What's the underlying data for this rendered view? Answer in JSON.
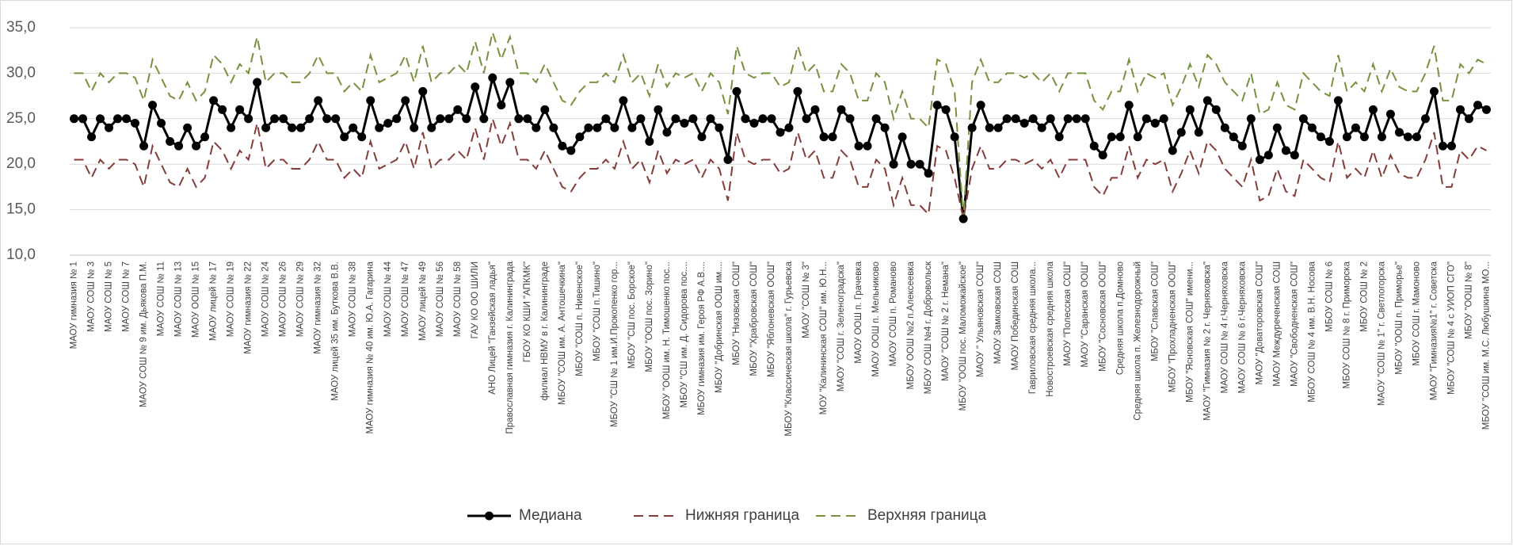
{
  "chart_data": {
    "type": "line",
    "categories": [
      "МАОУ гимназия № 1",
      null,
      "МАОУ СОШ № 3",
      null,
      "МАОУ СОШ № 5",
      null,
      "МАОУ СОШ № 7",
      null,
      "МАОУ СОШ № 9 им. Дьякова П.М.",
      null,
      "МАОУ СОШ № 11",
      null,
      "МАОУ СОШ № 13",
      null,
      "МАОУ ООШ № 15",
      null,
      "МАОУ лицей № 17",
      null,
      "МАОУ СОШ № 19",
      null,
      "МАОУ гимназия № 22",
      null,
      "МАОУ СОШ № 24",
      null,
      "МАОУ СОШ № 26",
      null,
      "МАОУ СОШ № 29",
      null,
      "МАОУ гимназия № 32",
      null,
      "МАОУ лицей 35 им. Буткова В.В.",
      null,
      "МАОУ СОШ № 38",
      null,
      "МАОУ гимназия № 40 им. Ю.А. Гагарина",
      null,
      "МАОУ СОШ № 44",
      null,
      "МАОУ СОШ № 47",
      null,
      "МАОУ лицей № 49",
      null,
      "МАОУ СОШ № 56",
      null,
      "МАОУ СОШ № 58",
      null,
      "ГАУ КО ОО ШИЛИ",
      null,
      "АНО Лицей \"Ганзейская ладья\"",
      null,
      "Православная гимназия г. Калининграда",
      null,
      "ГБОУ КО КШИ \"АПКМК\"",
      null,
      "филиал НВМУ в г. Калининграде",
      null,
      "МБОУ \"СОШ им. А. Антошечкина\"",
      null,
      "МБОУ \"СОШ п. Нивенское\"",
      null,
      "МБОУ \"СОШ п.Тишино\"",
      null,
      "МБОУ \"СШ № 1 им.И.Прокопенко гор...",
      null,
      "МБОУ \"СШ пос. Борское\"",
      null,
      "МБОУ \"ООШ пос. Зорино\"",
      null,
      "МБОУ \"ООШ им. Н. Тимошенко пос...",
      null,
      "МБОУ \"СШ им. Д. Сидорова пос....",
      null,
      "МБОУ гимназия им. Героя РФ А.В....",
      null,
      "МБОУ \"Добринская ООШ им....",
      null,
      "МБОУ \"Низовская СОШ\"",
      null,
      "МБОУ \"Храбровская СОШ\"",
      null,
      "МБОУ \"Яблоневская ООШ\"",
      null,
      "МБОУ \"Классическая школа\" г. Гурьевска",
      null,
      "МАОУ \"СОШ № 3\"",
      null,
      "МОУ \"Калининская СОШ\" им. Ю.Н...",
      null,
      "МАОУ \"СОШ г. Зеленоградска\"",
      null,
      "МАОУ ООШ п. Грачевка",
      null,
      "МАОУ ООШ п. Мельниково",
      null,
      "МАОУ СОШ п. Романово",
      null,
      "МБОУ ООШ №2 п.Алексеевка",
      null,
      "МБОУ СОШ №4 г. Добровольск",
      null,
      "МАОУ \"СОШ № 2 г. Немана\"",
      null,
      "МБОУ \"ООШ пос. Маломожайское\"",
      null,
      "МАОУ \" Ульяновская СОШ\"",
      null,
      "МАОУ Замковская СОШ",
      null,
      "МАОУ Побединская СОШ",
      null,
      "Гавриловская средняя школа...",
      null,
      "Новостроевская средняя школа",
      null,
      "МАОУ \"Полесская СОШ\"",
      null,
      "МАОУ \"Саранская ООШ\"",
      null,
      "МБОУ \"Сосновская ООШ\"",
      null,
      "Средняя школа п.Домново",
      null,
      "Средняя школа п. Железнодорожный",
      null,
      "МБОУ \"Славская СОШ\"",
      null,
      "МБОУ \"Прохладненская ООШ\"",
      null,
      "МБОУ \"Ясновская СОШ\" имени...",
      null,
      "МАОУ \"Гимназия № 2 г. Черняховска\"",
      null,
      "МАОУ СОШ № 4 г.Черняховска",
      null,
      "МАОУ СОШ № 6 г.Черняховска",
      null,
      "МАОУ \"Доваторовская СОШ\"",
      null,
      "МАОУ Междуреченская СОШ",
      null,
      "МАОУ \"Свободненская СОШ\"",
      null,
      "МБОУ СОШ № 4 им. В.Н. Носова",
      null,
      "МБОУ СОШ № 6",
      null,
      "МБОУ СОШ № 8 г. Приморска",
      null,
      "МБОУ СОШ № 2",
      null,
      "МАОУ \"СОШ № 1\" г. Светлогорска",
      null,
      "МБОУ \"ООШ п. Приморье\"",
      null,
      "МБОУ СОШ г. Мамоново",
      null,
      "МАОУ \"Гимназия№1\" г. Советска",
      null,
      "МБОУ \"СОШ № 4 с УИОП СГО\"",
      null,
      "МБОУ \"ООШ № 8\"",
      null,
      "МБОУ \"СОШ им. М.С. Любушкина МО..."
    ],
    "series": [
      {
        "name": "Медиана",
        "color": "#000000",
        "style": "solid",
        "marker": true,
        "values": [
          25,
          25,
          23,
          25,
          24,
          25,
          25,
          24.5,
          22,
          26.5,
          24.5,
          22.5,
          22,
          24,
          22,
          23,
          27,
          26,
          24,
          26,
          25,
          29,
          24,
          25,
          25,
          24,
          24,
          25,
          27,
          25,
          25,
          23,
          24,
          23,
          27,
          24,
          24.5,
          25,
          27,
          24,
          28,
          24,
          25,
          25,
          26,
          25,
          28.5,
          25,
          29.5,
          26.5,
          29,
          25,
          25,
          24,
          26,
          24,
          22,
          21.5,
          23,
          24,
          24,
          25,
          24,
          27,
          24,
          25,
          22.5,
          26,
          23.5,
          25,
          24.5,
          25,
          23,
          25,
          24,
          20.5,
          28,
          25,
          24.5,
          25,
          25,
          23.5,
          24,
          28,
          25,
          26,
          23,
          23,
          26,
          25,
          22,
          22,
          25,
          24,
          20,
          23,
          20,
          20,
          19,
          26.5,
          26,
          23,
          14,
          24,
          26.5,
          24,
          24,
          25,
          25,
          24.5,
          25,
          24,
          25,
          23,
          25,
          25,
          25,
          22,
          21,
          23,
          23,
          26.5,
          23,
          25,
          24.5,
          25,
          21.5,
          23.5,
          26,
          23.5,
          27,
          26,
          24,
          23,
          22,
          25,
          20.5,
          21,
          24,
          21.5,
          21,
          25,
          24,
          23,
          22.5,
          27,
          23,
          24,
          23,
          26,
          23,
          25.5,
          23.5,
          23,
          23,
          25,
          28,
          22,
          22,
          26,
          25,
          26.5,
          26
        ]
      },
      {
        "name": "Нижняя граница",
        "color": "#843c39",
        "style": "dashed",
        "marker": false,
        "values": [
          20.5,
          20.5,
          18.5,
          20.5,
          19.5,
          20.5,
          20.5,
          20,
          17.5,
          22,
          20,
          18,
          17.5,
          19.5,
          17.5,
          18.5,
          22.5,
          21.5,
          19.5,
          21.5,
          20.5,
          24.5,
          19.5,
          20.5,
          20.5,
          19.5,
          19.5,
          20.5,
          22.5,
          20.5,
          20.5,
          18.5,
          19.5,
          18.5,
          22.5,
          19.5,
          20,
          20.5,
          22.5,
          19.5,
          23.5,
          19.5,
          20.5,
          20.5,
          21.5,
          20.5,
          24,
          20.5,
          25,
          22,
          24.5,
          20.5,
          20.5,
          19.5,
          21.5,
          19.5,
          17.5,
          17,
          18.5,
          19.5,
          19.5,
          20.5,
          19.5,
          22.5,
          19.5,
          20.5,
          18,
          21.5,
          19,
          20.5,
          20,
          20.5,
          18.5,
          20.5,
          19.5,
          16,
          23.5,
          20.5,
          20,
          20.5,
          20.5,
          19,
          19.5,
          23.5,
          20.5,
          21.5,
          18.5,
          18.5,
          21.5,
          20.5,
          17.5,
          17.5,
          20.5,
          19.5,
          15.5,
          18.5,
          15.5,
          15.5,
          14.5,
          22,
          21.5,
          18.5,
          14,
          19.5,
          22,
          19.5,
          19.5,
          20.5,
          20.5,
          20,
          20.5,
          19.5,
          20.5,
          18.5,
          20.5,
          20.5,
          20.5,
          17.5,
          16.5,
          18.5,
          18.5,
          22,
          18.5,
          20.5,
          20,
          20.5,
          17,
          19,
          21.5,
          19,
          22.5,
          21.5,
          19.5,
          18.5,
          17.5,
          20.5,
          16,
          16.5,
          19.5,
          17,
          16.5,
          20.5,
          19.5,
          18.5,
          18,
          22.5,
          18.5,
          19.5,
          18.5,
          21.5,
          18.5,
          21,
          19,
          18.5,
          18.5,
          20.5,
          23.5,
          17.5,
          17.5,
          21.5,
          20.5,
          22,
          21.5
        ]
      },
      {
        "name": "Верхняя граница",
        "color": "#76923c",
        "style": "dashed",
        "marker": false,
        "values": [
          30,
          30,
          28,
          30,
          29,
          30,
          30,
          29.5,
          27,
          31.5,
          29.5,
          27.5,
          27,
          29,
          27,
          28,
          32,
          31,
          29,
          31,
          30,
          34,
          29,
          30,
          30,
          29,
          29,
          30,
          32,
          30,
          30,
          28,
          29,
          28,
          32,
          29,
          29.5,
          30,
          32,
          29,
          33,
          29,
          30,
          30,
          31,
          30,
          33.5,
          30,
          34.5,
          31.5,
          34,
          30,
          30,
          29,
          31,
          29,
          27,
          26.5,
          28,
          29,
          29,
          30,
          29,
          32,
          29,
          30,
          27.5,
          31,
          28.5,
          30,
          29.5,
          30,
          28,
          30,
          29,
          25.5,
          33,
          30,
          29.5,
          30,
          30,
          28.5,
          29,
          33,
          30,
          31,
          28,
          28,
          31,
          30,
          27,
          27,
          30,
          29,
          25,
          28,
          25,
          25,
          24,
          31.5,
          31,
          28,
          14,
          29,
          31.5,
          29,
          29,
          30,
          30,
          29.5,
          30,
          29,
          30,
          28,
          30,
          30,
          30,
          27,
          26,
          28,
          28,
          31.5,
          28,
          30,
          29.5,
          30,
          26.5,
          28.5,
          31,
          28.5,
          32,
          31,
          29,
          28,
          27,
          30,
          25.5,
          26,
          29,
          26.5,
          26,
          30,
          29,
          28,
          27.5,
          32,
          28,
          29,
          28,
          31,
          28,
          30.5,
          28.5,
          28,
          28,
          30,
          33,
          27,
          27,
          31,
          30,
          31.5,
          31
        ]
      }
    ],
    "ylim": [
      10,
      35
    ],
    "yticks": [
      {
        "value": 10,
        "label": "10,0"
      },
      {
        "value": 15,
        "label": "15,0"
      },
      {
        "value": 20,
        "label": "20,0"
      },
      {
        "value": 25,
        "label": "25,0"
      },
      {
        "value": 30,
        "label": "30,0"
      },
      {
        "value": 35,
        "label": "35,0"
      }
    ],
    "grid": true,
    "legend": "bottom"
  }
}
